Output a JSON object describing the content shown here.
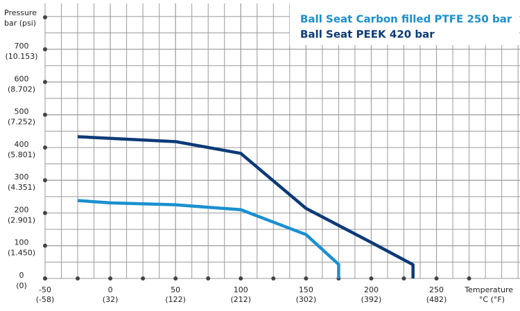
{
  "chart_data": {
    "type": "line",
    "y_axis_label": [
      "Pressure",
      "bar (psi)"
    ],
    "x_axis_label": [
      "Temperature",
      "°C (°F)"
    ],
    "xlim": [
      -50,
      314
    ],
    "ylim": [
      0,
      840
    ],
    "xticks": [
      -50,
      0,
      50,
      100,
      150,
      200,
      250
    ],
    "x_secondary_labels": [
      "(-58)",
      "(32)",
      "(122)",
      "(212)",
      "(302)",
      "(392)",
      "(482)"
    ],
    "yticks": [
      0,
      100,
      200,
      300,
      400,
      500,
      600,
      700
    ],
    "y_secondary_labels": [
      "(0)",
      "(1.450)",
      "(2.901)",
      "(4.351)",
      "(5.801)",
      "(7.252)",
      "(8.702)",
      "(10.153)"
    ],
    "grid": true,
    "legend": "top-right",
    "series": [
      {
        "name": "Ball Seat Carbon filled PTFE 250 bar",
        "color": "#1a90d0",
        "x": [
          -25,
          0,
          50,
          100,
          150,
          175,
          175
        ],
        "values": [
          238,
          231,
          225,
          210,
          134,
          43,
          0
        ]
      },
      {
        "name": "Ball Seat PEEK 420 bar",
        "color": "#0d3a78",
        "x": [
          -25,
          0,
          50,
          100,
          150,
          200,
          232,
          232
        ],
        "values": [
          433,
          428,
          418,
          382,
          214,
          110,
          42,
          0
        ]
      }
    ]
  }
}
